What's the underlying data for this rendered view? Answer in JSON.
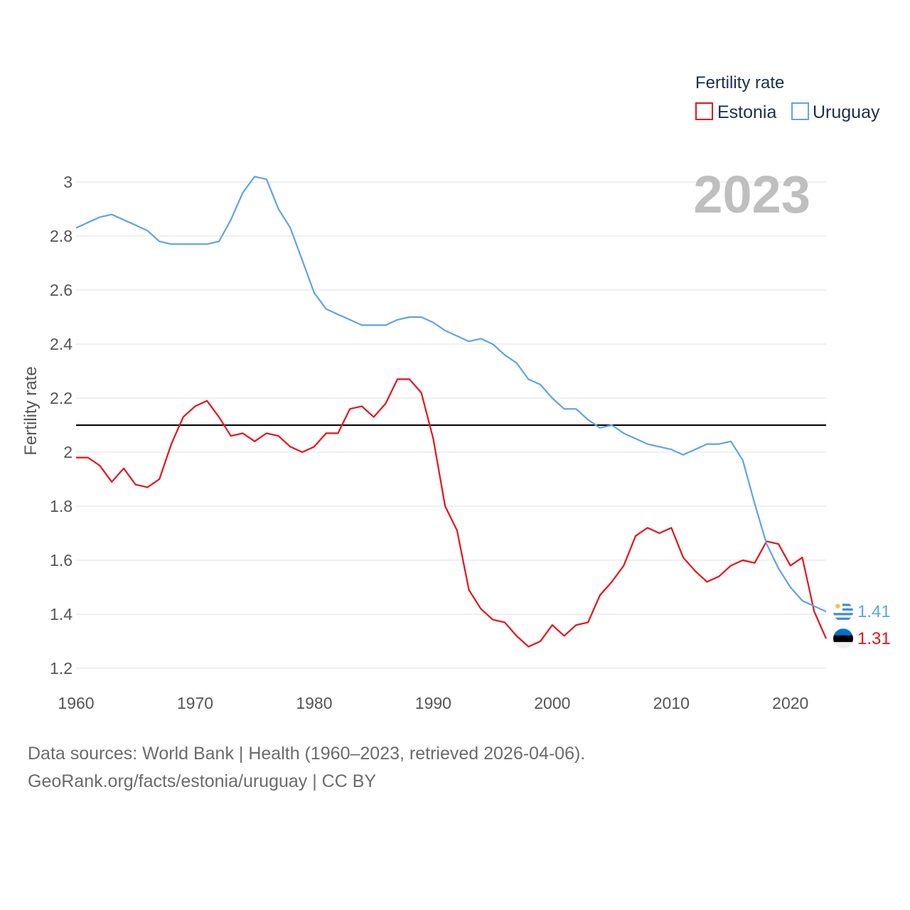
{
  "chart_data": {
    "type": "line",
    "legend_title": "Fertility rate",
    "ylabel": "Fertility rate",
    "xlim": [
      1960,
      2023
    ],
    "ylim": [
      1.2,
      3.05
    ],
    "x_ticks": [
      1960,
      1970,
      1980,
      1990,
      2000,
      2010,
      2020
    ],
    "y_ticks": [
      1.2,
      1.4,
      1.6,
      1.8,
      2,
      2.2,
      2.4,
      2.6,
      2.8,
      3
    ],
    "year_label": "2023",
    "reference_line": 2.1,
    "x": [
      1960,
      1961,
      1962,
      1963,
      1964,
      1965,
      1966,
      1967,
      1968,
      1969,
      1970,
      1971,
      1972,
      1973,
      1974,
      1975,
      1976,
      1977,
      1978,
      1979,
      1980,
      1981,
      1982,
      1983,
      1984,
      1985,
      1986,
      1987,
      1988,
      1989,
      1990,
      1991,
      1992,
      1993,
      1994,
      1995,
      1996,
      1997,
      1998,
      1999,
      2000,
      2001,
      2002,
      2003,
      2004,
      2005,
      2006,
      2007,
      2008,
      2009,
      2010,
      2011,
      2012,
      2013,
      2014,
      2015,
      2016,
      2017,
      2018,
      2019,
      2020,
      2021,
      2022,
      2023
    ],
    "series": [
      {
        "name": "Estonia",
        "color": "#e8111a",
        "end_label": "1.31",
        "values": [
          1.98,
          1.98,
          1.95,
          1.89,
          1.94,
          1.88,
          1.87,
          1.9,
          2.03,
          2.13,
          2.17,
          2.19,
          2.13,
          2.06,
          2.07,
          2.04,
          2.07,
          2.06,
          2.02,
          2.0,
          2.02,
          2.07,
          2.07,
          2.16,
          2.17,
          2.13,
          2.18,
          2.27,
          2.27,
          2.22,
          2.05,
          1.8,
          1.71,
          1.49,
          1.42,
          1.38,
          1.37,
          1.32,
          1.28,
          1.3,
          1.36,
          1.32,
          1.36,
          1.37,
          1.47,
          1.52,
          1.58,
          1.69,
          1.72,
          1.7,
          1.72,
          1.61,
          1.56,
          1.52,
          1.54,
          1.58,
          1.6,
          1.59,
          1.67,
          1.66,
          1.58,
          1.61,
          1.41,
          1.31
        ]
      },
      {
        "name": "Uruguay",
        "color": "#5fa3e6",
        "end_label": "1.41",
        "values": [
          2.83,
          2.85,
          2.87,
          2.88,
          2.86,
          2.84,
          2.82,
          2.78,
          2.77,
          2.77,
          2.77,
          2.77,
          2.78,
          2.86,
          2.96,
          3.02,
          3.01,
          2.9,
          2.83,
          2.71,
          2.59,
          2.53,
          2.51,
          2.49,
          2.47,
          2.47,
          2.47,
          2.49,
          2.5,
          2.5,
          2.48,
          2.45,
          2.43,
          2.41,
          2.42,
          2.4,
          2.36,
          2.33,
          2.27,
          2.25,
          2.2,
          2.16,
          2.16,
          2.12,
          2.09,
          2.1,
          2.07,
          2.05,
          2.03,
          2.02,
          2.01,
          1.99,
          2.01,
          2.03,
          2.03,
          2.04,
          1.97,
          1.81,
          1.66,
          1.57,
          1.5,
          1.45,
          1.43,
          1.41
        ]
      }
    ]
  },
  "footer": {
    "line1": "Data sources: World Bank | Health (1960–2023, retrieved 2026-04-06).",
    "line2": "GeoRank.org/facts/estonia/uruguay | CC BY"
  }
}
